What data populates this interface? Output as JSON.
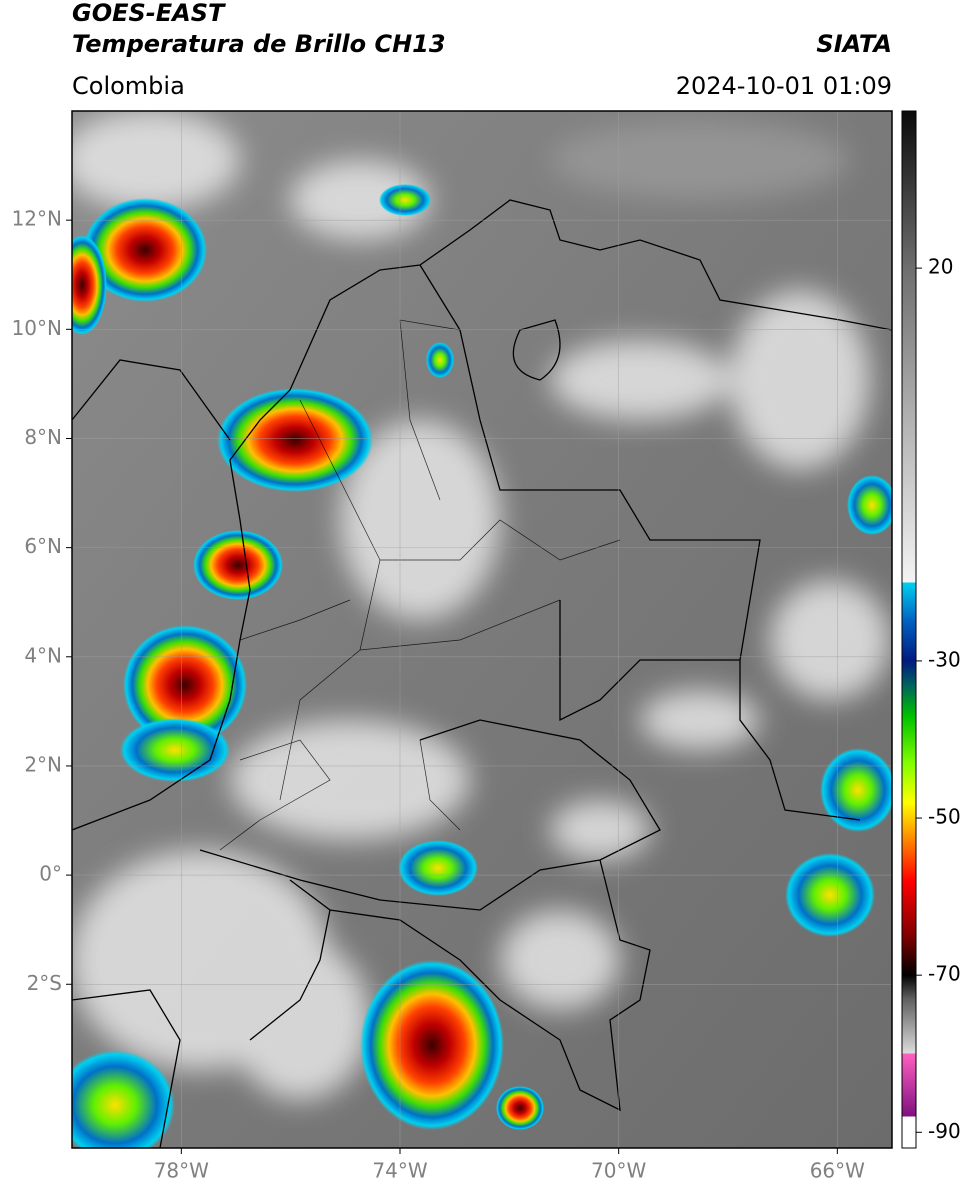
{
  "header": {
    "title": "GOES-EAST",
    "subtitle": "Temperatura de Brillo CH13",
    "source": "SIATA",
    "region": "Colombia",
    "datetime": "2024-10-01 01:09"
  },
  "map": {
    "xlim": [
      -80,
      -65
    ],
    "ylim": [
      -5,
      14
    ],
    "xticks": [
      {
        "value": -78,
        "label": "78°W"
      },
      {
        "value": -74,
        "label": "74°W"
      },
      {
        "value": -70,
        "label": "70°W"
      },
      {
        "value": -66,
        "label": "66°W"
      }
    ],
    "yticks": [
      {
        "value": 12,
        "label": "12°N"
      },
      {
        "value": 10,
        "label": "10°N"
      },
      {
        "value": 8,
        "label": "8°N"
      },
      {
        "value": 6,
        "label": "6°N"
      },
      {
        "value": 4,
        "label": "4°N"
      },
      {
        "value": 2,
        "label": "2°N"
      },
      {
        "value": 0,
        "label": "0°"
      },
      {
        "value": -2,
        "label": "2°S"
      }
    ],
    "grid": true
  },
  "colorbar": {
    "lim": [
      -92,
      40
    ],
    "ticks": [
      20,
      -30,
      -50,
      -70,
      -90
    ],
    "stops": [
      {
        "value": 40,
        "color": "#0a0a0a"
      },
      {
        "value": 30,
        "color": "#3c3c3c"
      },
      {
        "value": 20,
        "color": "#6e6e6e"
      },
      {
        "value": 0,
        "color": "#b4b4b4"
      },
      {
        "value": -20,
        "color": "#f4f4f4"
      },
      {
        "value": -20,
        "color": "#00d0f0"
      },
      {
        "value": -25,
        "color": "#0060c0"
      },
      {
        "value": -30,
        "color": "#001a80"
      },
      {
        "value": -33,
        "color": "#006060"
      },
      {
        "value": -37,
        "color": "#00c000"
      },
      {
        "value": -43,
        "color": "#80ff00"
      },
      {
        "value": -48,
        "color": "#ffff00"
      },
      {
        "value": -53,
        "color": "#ff8000"
      },
      {
        "value": -58,
        "color": "#ff0000"
      },
      {
        "value": -65,
        "color": "#800000"
      },
      {
        "value": -70,
        "color": "#000000"
      },
      {
        "value": -73,
        "color": "#606060"
      },
      {
        "value": -80,
        "color": "#dddddd"
      },
      {
        "value": -80,
        "color": "#ff60c0"
      },
      {
        "value": -88,
        "color": "#801080"
      },
      {
        "value": -88,
        "color": "#ffffff"
      },
      {
        "value": -92,
        "color": "#ffffff"
      }
    ]
  }
}
